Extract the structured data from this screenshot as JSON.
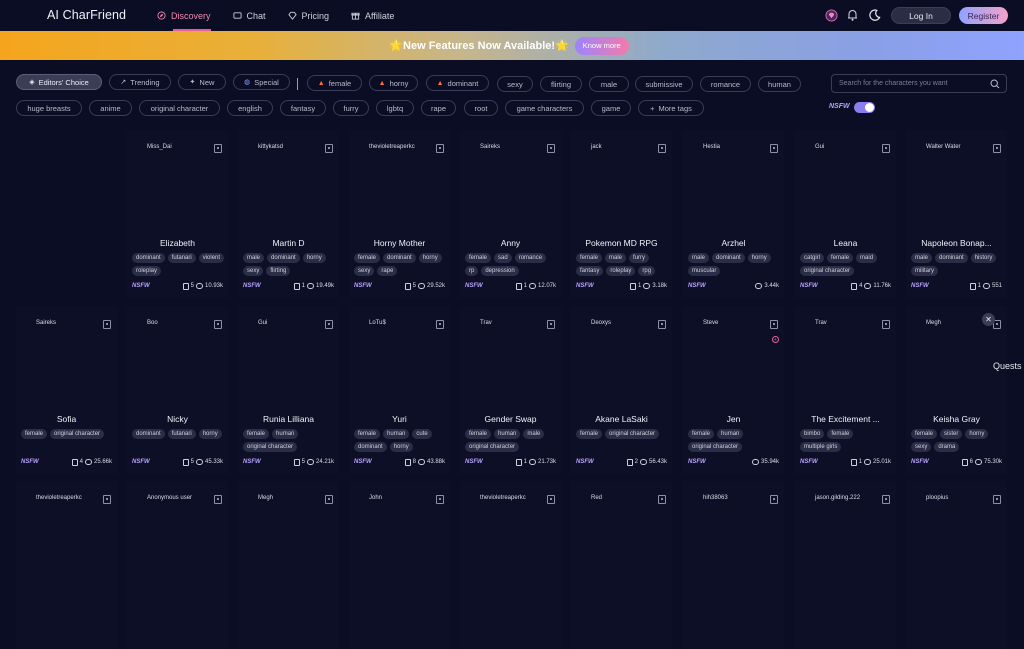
{
  "app": {
    "title": "AI CharFriend"
  },
  "nav": [
    {
      "label": "Discovery",
      "icon": "compass-icon"
    },
    {
      "label": "Chat",
      "icon": "chat-icon"
    },
    {
      "label": "Pricing",
      "icon": "diamond-icon"
    },
    {
      "label": "Affiliate",
      "icon": "gift-icon"
    }
  ],
  "header": {
    "login": "Log In",
    "register": "Register"
  },
  "banner": {
    "text": "🌟New Features Now Available!🌟",
    "button": "Know more"
  },
  "filters": {
    "editors_choice": "Editors' Choice",
    "trending": "Trending",
    "new": "New",
    "special": "Special",
    "row1": [
      "female",
      "horny",
      "dominant",
      "sexy",
      "flirting",
      "male",
      "submissive",
      "romance",
      "human"
    ],
    "row2": [
      "huge breasts",
      "anime",
      "original character",
      "english",
      "fantasy",
      "furry",
      "lgbtq",
      "rape",
      "root",
      "game characters",
      "game"
    ],
    "more": "More tags"
  },
  "search": {
    "placeholder": "Search for the characters you want"
  },
  "nsfw_toggle": {
    "label": "NSFW",
    "on": true
  },
  "accent": "#e85d9a",
  "cards": [
    {
      "user": "Miss_Dai",
      "name": "Elizabeth",
      "tags": [
        "dominant",
        "futanari",
        "violent",
        "roleplay"
      ],
      "nsfw": "NSFW",
      "notes": "5",
      "chats": "10.93k"
    },
    {
      "user": "kittykatsd",
      "name": "Martin D",
      "tags": [
        "male",
        "dominant",
        "horny",
        "sexy",
        "flirting"
      ],
      "nsfw": "NSFW",
      "notes": "1",
      "chats": "19.49k"
    },
    {
      "user": "thevioletreaperkc",
      "name": "Horny Mother",
      "tags": [
        "female",
        "dominant",
        "horny",
        "sexy",
        "rape"
      ],
      "nsfw": "NSFW",
      "notes": "5",
      "chats": "29.52k"
    },
    {
      "user": "Saireks",
      "name": "Anny",
      "tags": [
        "female",
        "sad",
        "romance",
        "rp",
        "depression"
      ],
      "nsfw": "NSFW",
      "notes": "1",
      "chats": "12.07k"
    },
    {
      "user": "jack",
      "name": "Pokemon MD RPG",
      "tags": [
        "female",
        "male",
        "furry",
        "fantasy",
        "roleplay",
        "rpg"
      ],
      "nsfw": "NSFW",
      "notes": "1",
      "chats": "3.18k"
    },
    {
      "user": "Hestia",
      "name": "Arzhel",
      "tags": [
        "male",
        "dominant",
        "horny",
        "muscular"
      ],
      "nsfw": "NSFW",
      "notes": "",
      "chats": "3.44k"
    },
    {
      "user": "Gui",
      "name": "Leana",
      "tags": [
        "catgirl",
        "female",
        "maid",
        "original character"
      ],
      "nsfw": "NSFW",
      "notes": "4",
      "chats": "11.76k"
    },
    {
      "user": "Walter Water",
      "name": "Napoleon Bonap...",
      "tags": [
        "male",
        "dominant",
        "history",
        "military"
      ],
      "nsfw": "NSFW",
      "notes": "1",
      "chats": "551"
    },
    {
      "user": "Saireks",
      "name": "Sofia",
      "tags": [
        "female",
        "original character"
      ],
      "nsfw": "NSFW",
      "notes": "4",
      "chats": "25.66k"
    },
    {
      "user": "Boo",
      "name": "Nicky",
      "tags": [
        "dominant",
        "futanari",
        "horny"
      ],
      "nsfw": "NSFW",
      "notes": "5",
      "chats": "45.33k"
    },
    {
      "user": "Gui",
      "name": "Runia Lilliana",
      "tags": [
        "female",
        "human",
        "original character"
      ],
      "nsfw": "NSFW",
      "notes": "5",
      "chats": "24.21k"
    },
    {
      "user": "LoTu$",
      "name": "Yuri",
      "tags": [
        "female",
        "human",
        "cute",
        "dominant",
        "horny"
      ],
      "nsfw": "NSFW",
      "notes": "8",
      "chats": "43.88k"
    },
    {
      "user": "Trav",
      "name": "Gender Swap",
      "tags": [
        "female",
        "human",
        "male",
        "original character"
      ],
      "nsfw": "NSFW",
      "notes": "1",
      "chats": "21.73k"
    },
    {
      "user": "Deoxys",
      "name": "Akane LaSaki",
      "tags": [
        "female",
        "original character"
      ],
      "nsfw": "NSFW",
      "notes": "2",
      "chats": "56.43k"
    },
    {
      "user": "Steve",
      "name": "Jen",
      "tags": [
        "female",
        "human",
        "original character"
      ],
      "nsfw": "NSFW",
      "notes": "",
      "chats": "35.94k"
    },
    {
      "user": "Trav",
      "name": "The Excitement ...",
      "tags": [
        "bimbo",
        "female",
        "multiple girls"
      ],
      "nsfw": "NSFW",
      "notes": "1",
      "chats": "25.01k"
    },
    {
      "user": "Megh",
      "name": "Keisha Gray",
      "tags": [
        "female",
        "sister",
        "horny",
        "sexy",
        "drama"
      ],
      "nsfw": "NSFW",
      "notes": "6",
      "chats": "75.30k"
    },
    {
      "user": "thevioletreaperkc"
    },
    {
      "user": "Anonymous user"
    },
    {
      "user": "Megh"
    },
    {
      "user": "John"
    },
    {
      "user": "thevioletreaperkc"
    },
    {
      "user": "Red"
    },
    {
      "user": "hih38063"
    },
    {
      "user": "jason.gilding.222"
    },
    {
      "user": "ploopius"
    }
  ],
  "side": {
    "quests": "Quests"
  }
}
